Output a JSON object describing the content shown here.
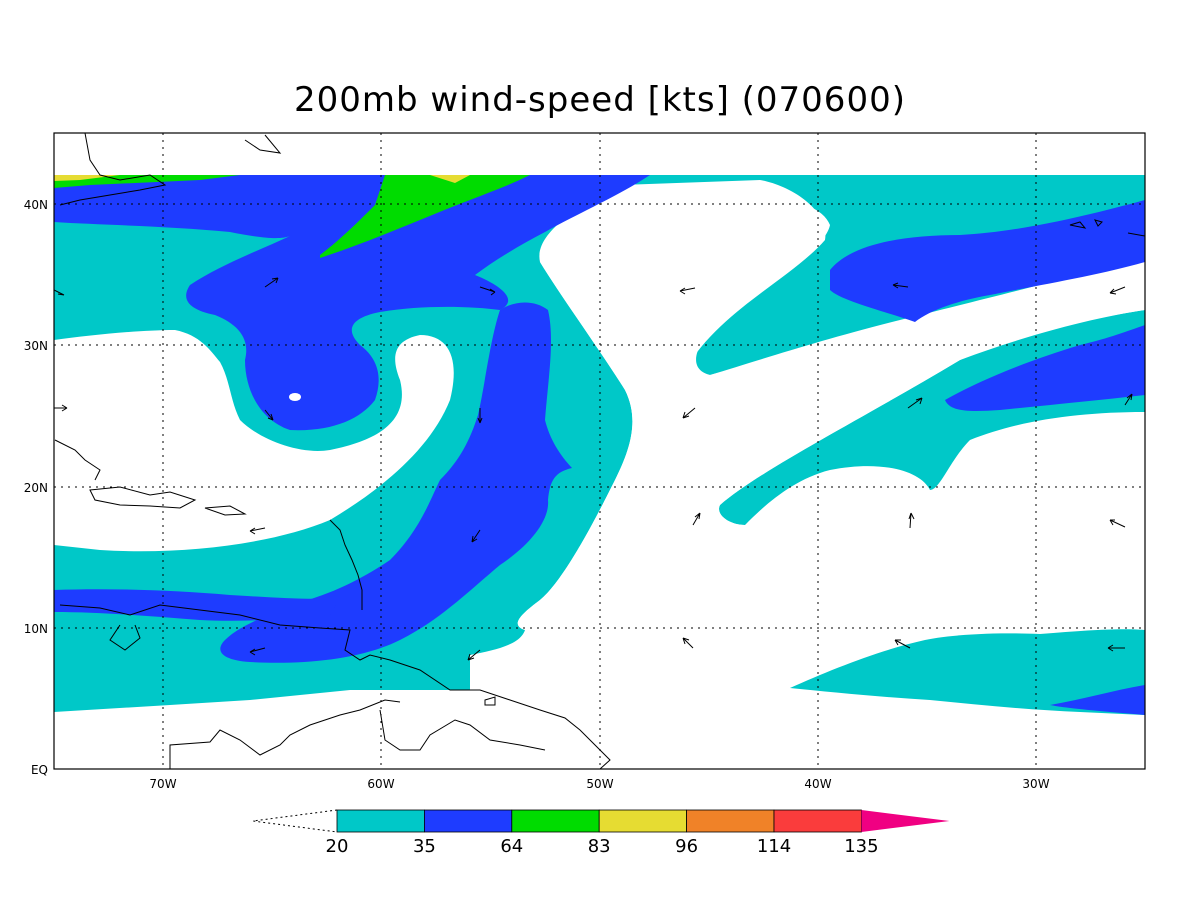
{
  "title": "200mb wind-speed [kts] (070600)",
  "axes": {
    "lon_ticks": [
      "70W",
      "60W",
      "50W",
      "40W",
      "30W"
    ],
    "lat_ticks": [
      "EQ",
      "10N",
      "20N",
      "30N",
      "40N"
    ]
  },
  "colorbar": {
    "levels": [
      "20",
      "35",
      "64",
      "83",
      "96",
      "114",
      "135"
    ],
    "colors": [
      "#00c8c8",
      "#1e3cff",
      "#00dc00",
      "#e6dc32",
      "#f08228",
      "#fa3c3c",
      "#f00082"
    ]
  },
  "map_colors": {
    "land_outline": "#000000",
    "background": "#ffffff"
  }
}
